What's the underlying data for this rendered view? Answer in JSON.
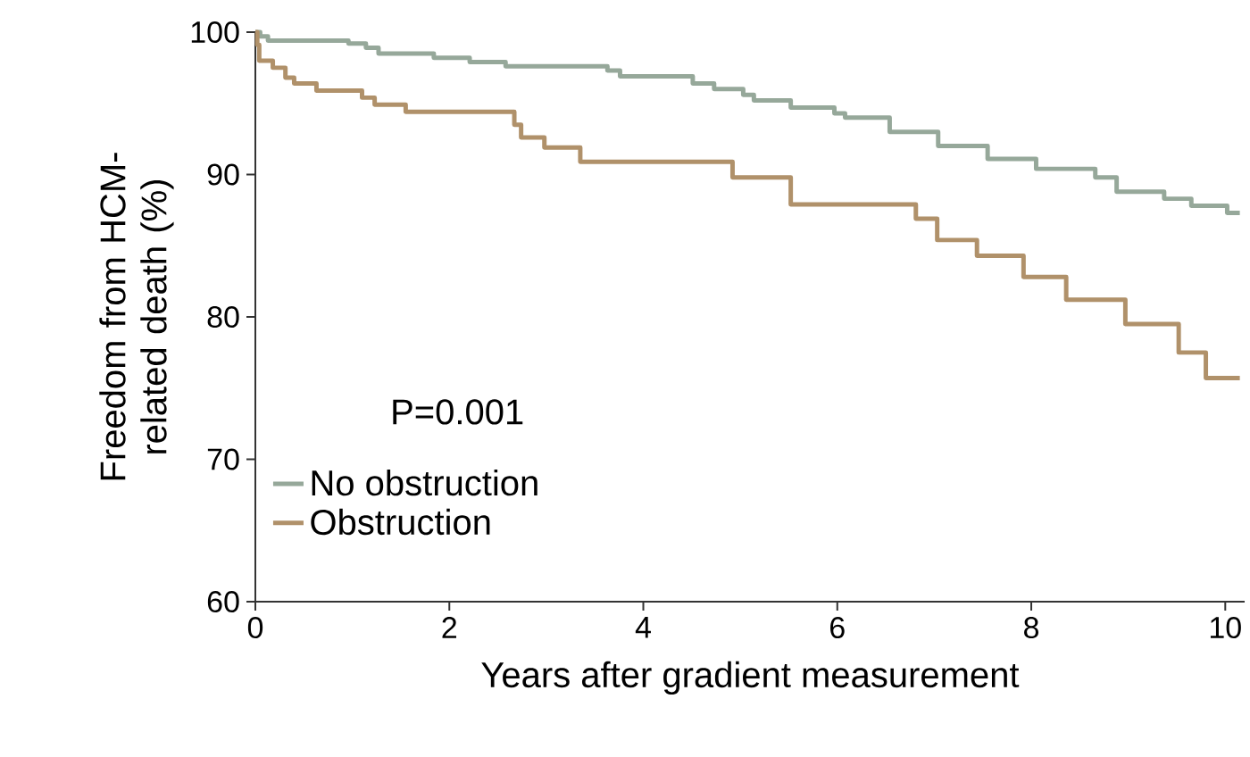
{
  "chart_data": {
    "type": "step",
    "xlabel": "Years after gradient measurement",
    "ylabel": "Freedom from HCM-related death (%)",
    "xlim": [
      0,
      10.2
    ],
    "ylim": [
      60,
      100
    ],
    "xticks": [
      0,
      2,
      4,
      6,
      8,
      10
    ],
    "yticks": [
      60,
      70,
      80,
      90,
      100
    ],
    "legend": "bottom left",
    "annotations": [
      "P=0.001"
    ],
    "series": [
      {
        "name": "No obstruction",
        "color": "#96a89a",
        "x": [
          0,
          0.05,
          0.13,
          0.96,
          1.14,
          1.27,
          1.84,
          2.21,
          2.58,
          3.63,
          3.76,
          4.51,
          4.73,
          5.03,
          5.14,
          5.52,
          5.97,
          6.08,
          6.54,
          7.04,
          7.55,
          8.05,
          8.66,
          8.88,
          9.37,
          9.65,
          10.02,
          10.15
        ],
        "values": [
          100,
          99.7,
          99.4,
          99.2,
          98.9,
          98.5,
          98.2,
          97.9,
          97.6,
          97.3,
          96.9,
          96.4,
          96.0,
          95.6,
          95.2,
          94.7,
          94.3,
          94.0,
          93.0,
          92.0,
          91.1,
          90.4,
          89.8,
          88.8,
          88.3,
          87.8,
          87.3,
          87.3
        ]
      },
      {
        "name": "Obstruction",
        "color": "#b0916a",
        "x": [
          0,
          0.02,
          0.04,
          0.18,
          0.31,
          0.4,
          0.63,
          1.1,
          1.23,
          1.55,
          2.67,
          2.74,
          2.98,
          3.35,
          4.92,
          5.52,
          6.81,
          7.03,
          7.44,
          7.92,
          8.36,
          8.97,
          9.52,
          9.8,
          10.15
        ],
        "values": [
          100,
          99.1,
          98.0,
          97.5,
          96.8,
          96.4,
          95.9,
          95.4,
          94.9,
          94.4,
          93.5,
          92.6,
          91.9,
          90.9,
          89.8,
          87.9,
          86.9,
          85.4,
          84.3,
          82.8,
          81.2,
          79.5,
          77.5,
          75.7,
          75.7
        ]
      }
    ]
  }
}
